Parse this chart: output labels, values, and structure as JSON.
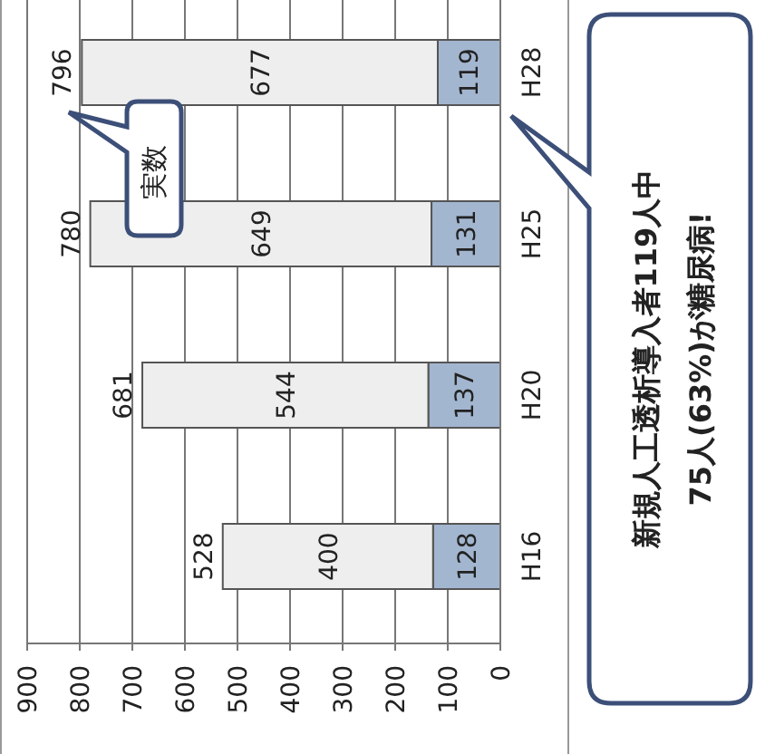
{
  "chart_data": {
    "type": "bar",
    "stacked": true,
    "orientation": "horizontal",
    "categories": [
      "H28",
      "H25",
      "H20",
      "H16"
    ],
    "series": [
      {
        "color": "#a3b6d0",
        "values": [
          119,
          131,
          137,
          128
        ]
      },
      {
        "color": "#eeeeee",
        "values": [
          677,
          649,
          544,
          400
        ]
      }
    ],
    "data_labels": true,
    "totals": [
      "796",
      "780",
      "681",
      "528"
    ],
    "xlim": [
      900,
      0
    ],
    "xticks": [
      900,
      800,
      700,
      600,
      500,
      400,
      300,
      200,
      100,
      0
    ],
    "grid": "x",
    "annotations": [
      "実数",
      "新規人工透析導入者119人中",
      "75人(63%)が糖尿病!"
    ]
  }
}
